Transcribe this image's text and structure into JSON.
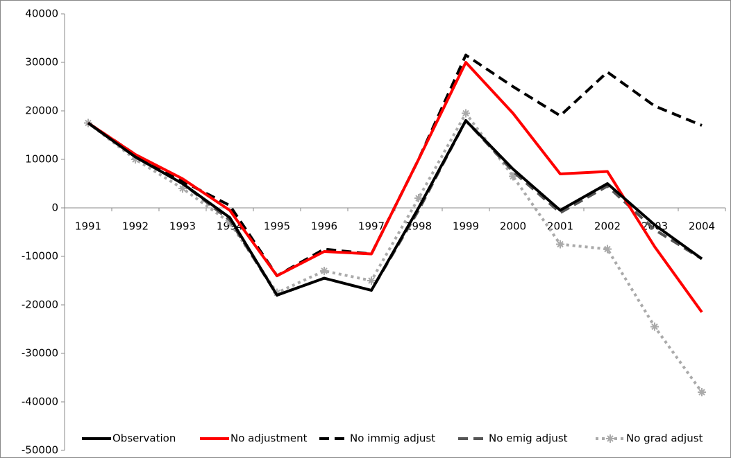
{
  "chart_data": {
    "type": "line",
    "categories": [
      "1991",
      "1992",
      "1993",
      "1994",
      "1995",
      "1996",
      "1997",
      "1998",
      "1999",
      "2000",
      "2001",
      "2002",
      "2003",
      "2004"
    ],
    "series": [
      {
        "name": "Observation",
        "color": "#000000",
        "style": "solid",
        "values": [
          17500,
          10500,
          5000,
          -2000,
          -18000,
          -14500,
          -17000,
          0,
          18000,
          8000,
          -500,
          5000,
          -3500,
          -10500
        ]
      },
      {
        "name": "No adjustment",
        "color": "#ff0000",
        "style": "solid",
        "values": [
          17500,
          11000,
          6000,
          -500,
          -14000,
          -9000,
          -9500,
          10000,
          30000,
          19500,
          7000,
          7500,
          -8000,
          -21500
        ]
      },
      {
        "name": "No immig adjust",
        "color": "#000000",
        "style": "dashed",
        "values": [
          17500,
          11000,
          5500,
          500,
          -14000,
          -8500,
          -9500,
          10000,
          31500,
          25000,
          19000,
          28000,
          21000,
          17000
        ]
      },
      {
        "name": "No emig adjust",
        "color": "#555555",
        "style": "dashed",
        "values": [
          17500,
          10500,
          5000,
          -2500,
          -18000,
          -14500,
          -17000,
          -500,
          18000,
          7500,
          -1000,
          4500,
          -4500,
          -10500
        ]
      },
      {
        "name": "No grad adjust",
        "color": "#aaaaaa",
        "style": "dotted",
        "marker": "asterisk",
        "values": [
          17500,
          10000,
          4000,
          -3000,
          -17500,
          -13000,
          -15000,
          2000,
          19500,
          6500,
          -7500,
          -8500,
          -24500,
          -38000
        ]
      }
    ],
    "ylim": [
      -50000,
      40000
    ],
    "yticks": [
      -50000,
      -40000,
      -30000,
      -20000,
      -10000,
      0,
      10000,
      20000,
      30000,
      40000
    ],
    "grid": false,
    "legend": "bottom"
  }
}
